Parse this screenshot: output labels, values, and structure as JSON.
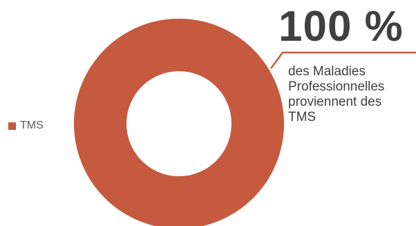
{
  "chart_data": {
    "type": "pie",
    "variant": "donut",
    "categories": [
      "TMS"
    ],
    "values": [
      100
    ],
    "colors": [
      "#c55a3f"
    ],
    "legend": {
      "position": "left",
      "entries": [
        "TMS"
      ]
    }
  },
  "annotation": {
    "value": "100 %",
    "text": "des Maladies Professionnelles proviennent des TMS",
    "line_color": "#c55a3f"
  }
}
